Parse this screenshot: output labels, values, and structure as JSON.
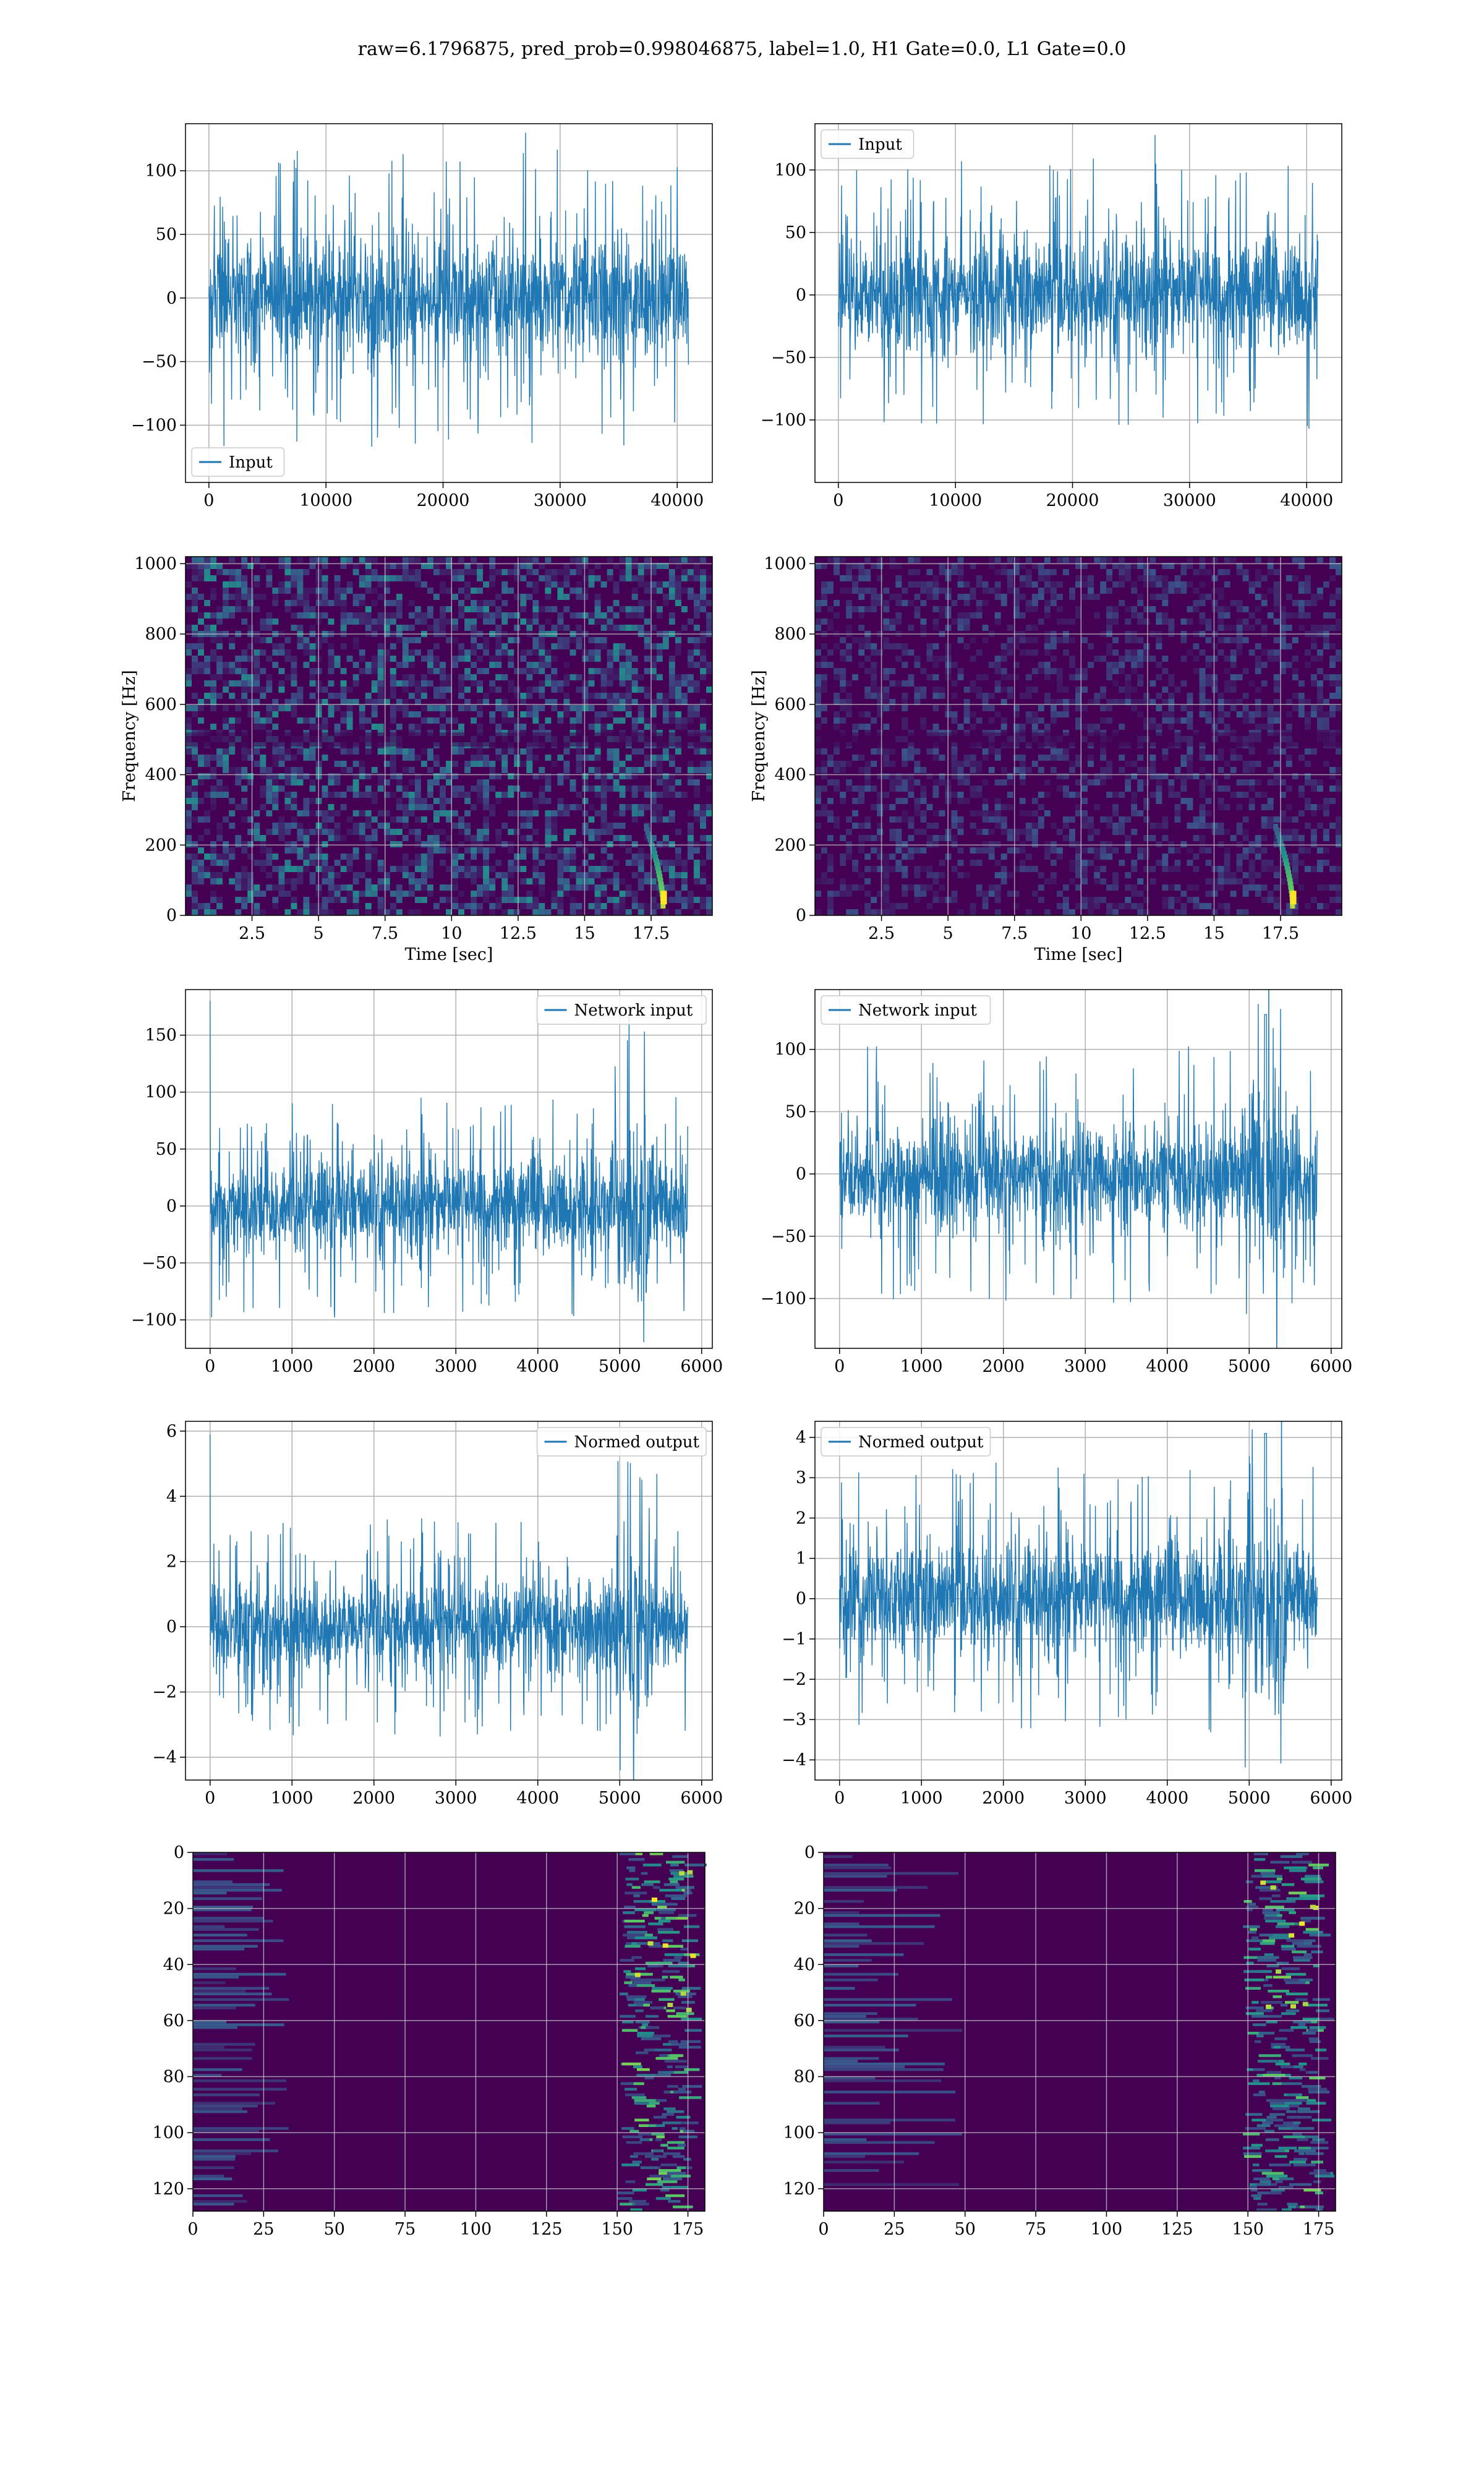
{
  "figure": {
    "title": "raw=6.1796875, pred_prob=0.998046875, label=1.0, H1 Gate=0.0, L1 Gate=0.0"
  },
  "colors": {
    "series": "#1f77b4",
    "grid": "#b0b0b0",
    "viridis_dark": "#440154",
    "viridis_mid": "#21918c",
    "viridis_bright": "#fde725"
  },
  "chart_data": [
    {
      "id": "r1c1",
      "type": "line",
      "series_name": "Input",
      "legend_loc": "lower-left",
      "xlim": [
        -2000,
        43000
      ],
      "ylim": [
        -145,
        137
      ],
      "xticks": [
        0,
        10000,
        20000,
        30000,
        40000
      ],
      "yticks": [
        -100,
        -50,
        0,
        50,
        100
      ],
      "x_start": 0,
      "x_end": 40960,
      "envelope": 45,
      "spike": 130,
      "grid": true
    },
    {
      "id": "r1c2",
      "type": "line",
      "series_name": "Input",
      "legend_loc": "upper-left",
      "xlim": [
        -2000,
        43000
      ],
      "ylim": [
        -150,
        137
      ],
      "xticks": [
        0,
        10000,
        20000,
        30000,
        40000
      ],
      "yticks": [
        -100,
        -50,
        0,
        50,
        100
      ],
      "x_start": 0,
      "x_end": 40960,
      "envelope": 42,
      "spike": 128,
      "grid": true
    },
    {
      "id": "r2c1",
      "type": "heatmap",
      "xlabel": "Time [sec]",
      "ylabel": "Frequency [Hz]",
      "xlim": [
        0.0,
        19.8
      ],
      "ylim": [
        0,
        1020
      ],
      "xticks": [
        2.5,
        5.0,
        7.5,
        10.0,
        12.5,
        15.0,
        17.5
      ],
      "yticks": [
        0,
        200,
        400,
        600,
        800,
        1000
      ],
      "chirp_time": 18.0,
      "grid": true
    },
    {
      "id": "r2c2",
      "type": "heatmap",
      "xlabel": "Time [sec]",
      "ylabel": "Frequency [Hz]",
      "xlim": [
        0.0,
        19.8
      ],
      "ylim": [
        0,
        1020
      ],
      "xticks": [
        2.5,
        5.0,
        7.5,
        10.0,
        12.5,
        15.0,
        17.5
      ],
      "yticks": [
        0,
        200,
        400,
        600,
        800,
        1000
      ],
      "chirp_time": 18.0,
      "grid": true
    },
    {
      "id": "r3c1",
      "type": "line",
      "series_name": "Network input",
      "legend_loc": "upper-right",
      "xlim": [
        -300,
        6130
      ],
      "ylim": [
        -125,
        190
      ],
      "xticks": [
        0,
        1000,
        2000,
        3000,
        4000,
        5000,
        6000
      ],
      "yticks": [
        -100,
        -50,
        0,
        50,
        100,
        150
      ],
      "x_start": 0,
      "x_end": 5830,
      "envelope": 38,
      "first_spike": 180,
      "burst_at": 5200,
      "grid": true
    },
    {
      "id": "r3c2",
      "type": "line",
      "series_name": "Network input",
      "legend_loc": "upper-left",
      "xlim": [
        -300,
        6130
      ],
      "ylim": [
        -140,
        148
      ],
      "xticks": [
        0,
        1000,
        2000,
        3000,
        4000,
        5000,
        6000
      ],
      "yticks": [
        -100,
        -50,
        0,
        50,
        100
      ],
      "x_start": 0,
      "x_end": 5830,
      "envelope": 40,
      "burst_at": 5200,
      "burst_peak": 128,
      "grid": true
    },
    {
      "id": "r4c1",
      "type": "line",
      "series_name": "Normed output",
      "legend_loc": "upper-right",
      "xlim": [
        -300,
        6130
      ],
      "ylim": [
        -4.7,
        6.3
      ],
      "xticks": [
        0,
        1000,
        2000,
        3000,
        4000,
        5000,
        6000
      ],
      "yticks": [
        -4,
        -2,
        0,
        2,
        4,
        6
      ],
      "x_start": 0,
      "x_end": 5830,
      "envelope": 1.3,
      "first_spike": 5.9,
      "burst_at": 5200,
      "grid": true
    },
    {
      "id": "r4c2",
      "type": "line",
      "series_name": "Normed output",
      "legend_loc": "upper-left",
      "xlim": [
        -300,
        6130
      ],
      "ylim": [
        -4.5,
        4.4
      ],
      "xticks": [
        0,
        1000,
        2000,
        3000,
        4000,
        5000,
        6000
      ],
      "yticks": [
        -4,
        -3,
        -2,
        -1,
        0,
        1,
        2,
        3,
        4
      ],
      "x_start": 0,
      "x_end": 5830,
      "envelope": 1.3,
      "burst_at": 5200,
      "burst_peak": 4.1,
      "grid": true
    },
    {
      "id": "r5c1",
      "type": "heatmap",
      "xlim": [
        0,
        181
      ],
      "ylim": [
        128,
        0
      ],
      "xticks": [
        0,
        25,
        50,
        75,
        100,
        125,
        150,
        175
      ],
      "yticks": [
        0,
        20,
        40,
        60,
        80,
        100,
        120
      ],
      "active_band": [
        150,
        178
      ],
      "grid": true
    },
    {
      "id": "r5c2",
      "type": "heatmap",
      "xlim": [
        0,
        181
      ],
      "ylim": [
        128,
        0
      ],
      "xticks": [
        0,
        25,
        50,
        75,
        100,
        125,
        150,
        175
      ],
      "yticks": [
        0,
        20,
        40,
        60,
        80,
        100,
        120
      ],
      "active_band": [
        148,
        178
      ],
      "grid": true
    }
  ]
}
